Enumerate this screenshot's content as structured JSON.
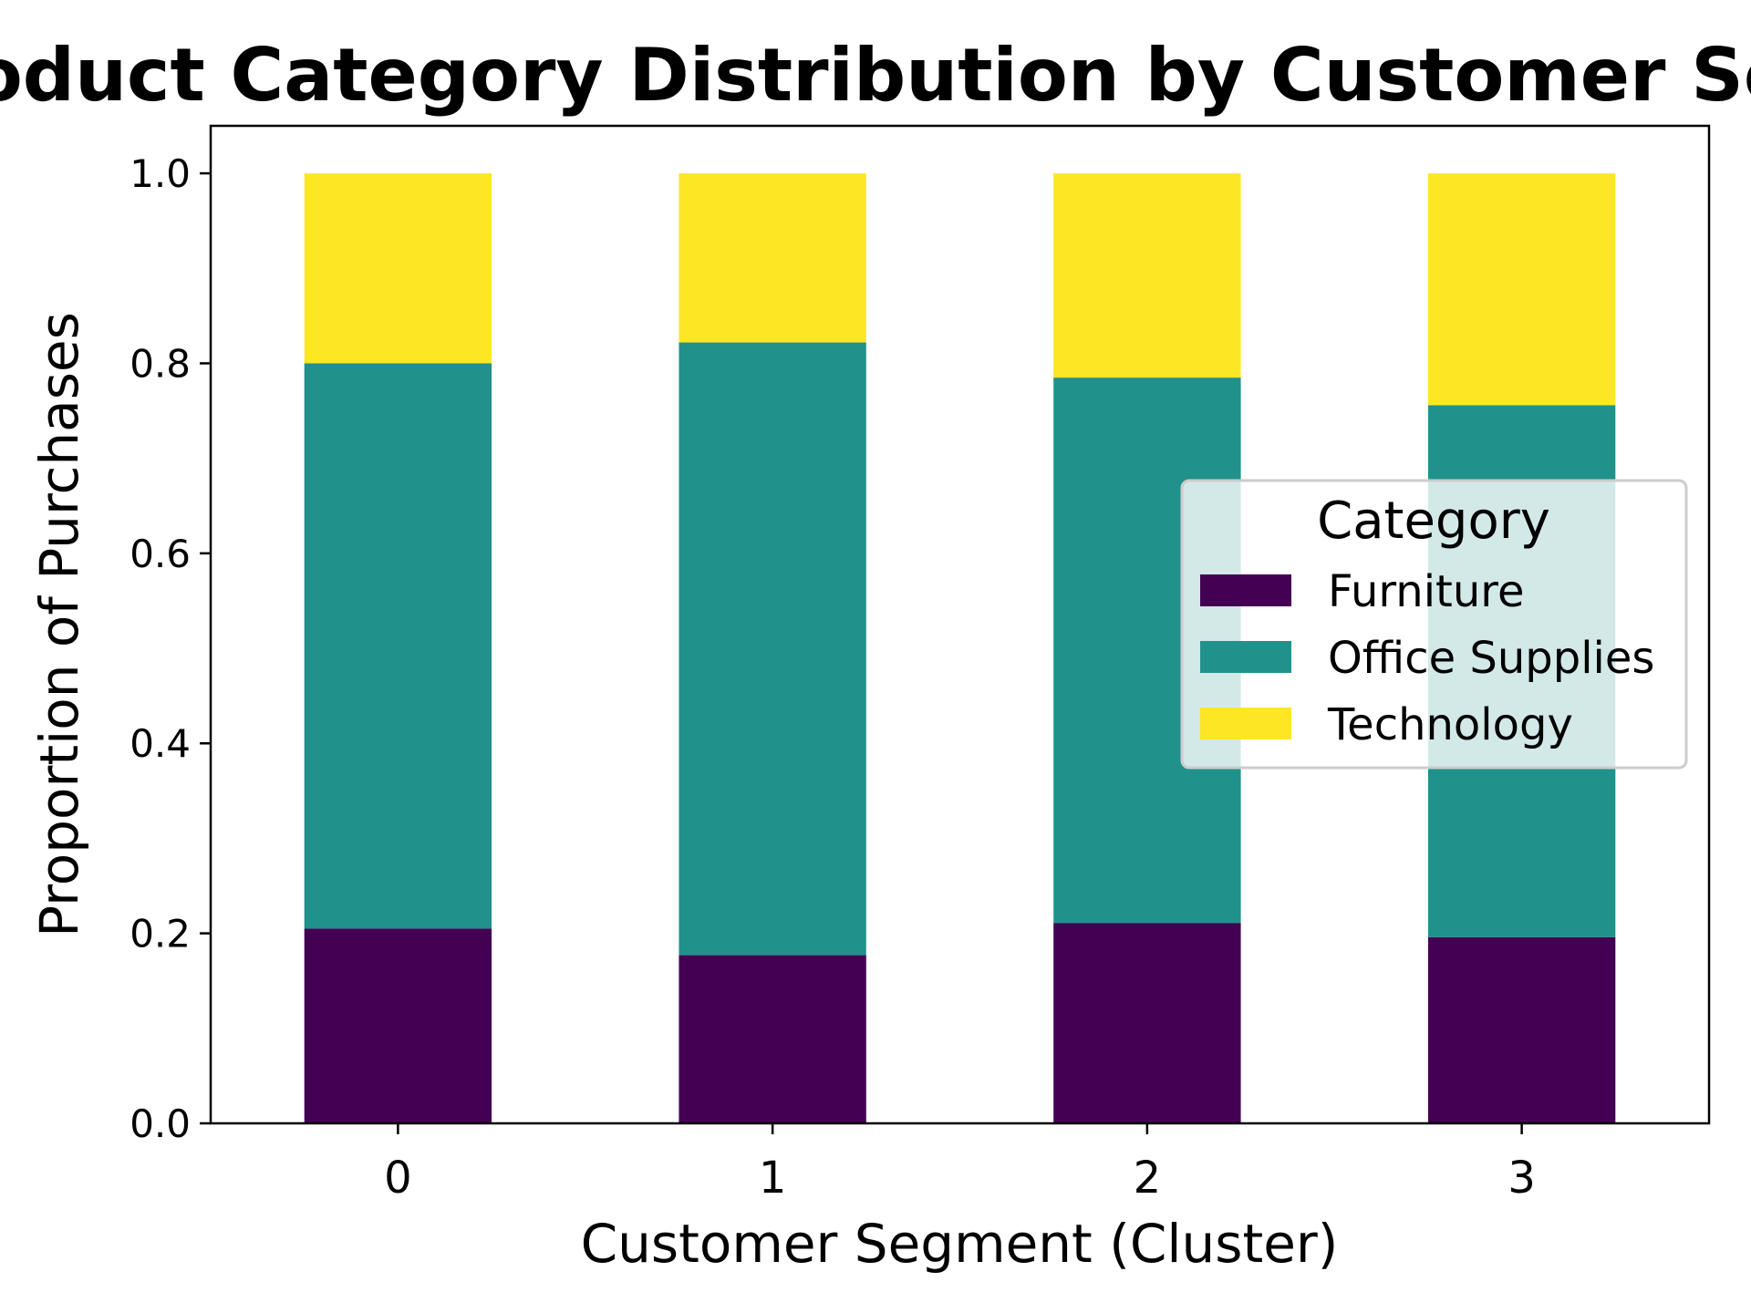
{
  "chart_data": {
    "type": "bar",
    "stacked": true,
    "title": "Product Category Distribution by Customer Segment",
    "xlabel": "Customer Segment (Cluster)",
    "ylabel": "Proportion of Purchases",
    "categories": [
      "0",
      "1",
      "2",
      "3"
    ],
    "ylim": [
      0,
      1.05
    ],
    "yticks": [
      "0.0",
      "0.2",
      "0.4",
      "0.6",
      "0.8",
      "1.0"
    ],
    "grid": false,
    "legend": {
      "title": "Category",
      "placement": "center-right"
    },
    "series": [
      {
        "name": "Furniture",
        "color": "#440154",
        "values": [
          0.205,
          0.177,
          0.211,
          0.196
        ]
      },
      {
        "name": "Office Supplies",
        "color": "#21918c",
        "values": [
          0.595,
          0.645,
          0.574,
          0.56
        ]
      },
      {
        "name": "Technology",
        "color": "#fde725",
        "values": [
          0.2,
          0.178,
          0.215,
          0.244
        ]
      }
    ]
  }
}
